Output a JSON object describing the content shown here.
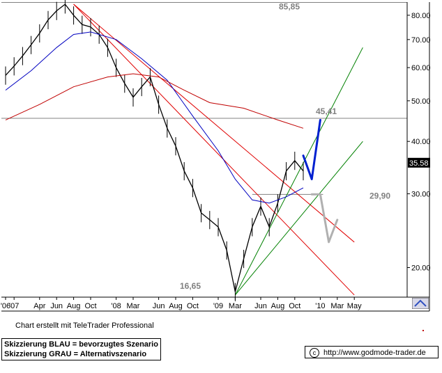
{
  "chart_data": {
    "type": "line",
    "subtype": "candlestick-price-chart",
    "y_scale": "log",
    "ylim": [
      17.0,
      86.0
    ],
    "y_ticks": [
      20,
      30,
      40,
      50,
      60,
      70,
      80
    ],
    "y_tick_labels": [
      "20.00",
      "30.00",
      "40.00",
      "50.00",
      "60.00",
      "70.00",
      "80.00"
    ],
    "x_axis": {
      "start": "2006-12",
      "end": "2010-06",
      "ticks": [
        {
          "label": "'06",
          "date": "2006-12"
        },
        {
          "label": "'07",
          "date": "2007-01"
        },
        {
          "label": "Apr",
          "date": "2007-04"
        },
        {
          "label": "Jun",
          "date": "2007-06"
        },
        {
          "label": "Aug",
          "date": "2007-08"
        },
        {
          "label": "Oct",
          "date": "2007-10"
        },
        {
          "label": "'08",
          "date": "2008-01"
        },
        {
          "label": "Mar",
          "date": "2008-03"
        },
        {
          "label": "Jun",
          "date": "2008-06"
        },
        {
          "label": "Aug",
          "date": "2008-08"
        },
        {
          "label": "Oct",
          "date": "2008-10"
        },
        {
          "label": "'09",
          "date": "2009-01"
        },
        {
          "label": "Mar",
          "date": "2009-03"
        },
        {
          "label": "Jun",
          "date": "2009-06"
        },
        {
          "label": "Aug",
          "date": "2009-08"
        },
        {
          "label": "Oct",
          "date": "2009-10"
        },
        {
          "label": "'10",
          "date": "2010-01"
        },
        {
          "label": "Mar",
          "date": "2010-03"
        },
        {
          "label": "May",
          "date": "2010-05"
        }
      ]
    },
    "last_price_label": "35.58",
    "last_price": 35.58,
    "series": [
      {
        "kind": "price",
        "color": "#000000",
        "points": [
          [
            "2006-12",
            57.5
          ],
          [
            "2007-01",
            60.5
          ],
          [
            "2007-02",
            64
          ],
          [
            "2007-03",
            68
          ],
          [
            "2007-04",
            72.5
          ],
          [
            "2007-05",
            78
          ],
          [
            "2007-06",
            82
          ],
          [
            "2007-07",
            85
          ],
          [
            "2007-08",
            80
          ],
          [
            "2007-09",
            76
          ],
          [
            "2007-10",
            75
          ],
          [
            "2007-11",
            72
          ],
          [
            "2007-12",
            67
          ],
          [
            "2008-01",
            60
          ],
          [
            "2008-02",
            55
          ],
          [
            "2008-03",
            51
          ],
          [
            "2008-04",
            54
          ],
          [
            "2008-05",
            57
          ],
          [
            "2008-06",
            49
          ],
          [
            "2008-07",
            43
          ],
          [
            "2008-08",
            39
          ],
          [
            "2008-09",
            34
          ],
          [
            "2008-10",
            31
          ],
          [
            "2008-11",
            27
          ],
          [
            "2008-12",
            26
          ],
          [
            "2009-01",
            25
          ],
          [
            "2009-02",
            22
          ],
          [
            "2009-03",
            17.5
          ],
          [
            "2009-04",
            21
          ],
          [
            "2009-05",
            25
          ],
          [
            "2009-06",
            28
          ],
          [
            "2009-07",
            25
          ],
          [
            "2009-08",
            28.5
          ],
          [
            "2009-09",
            34
          ],
          [
            "2009-10",
            36
          ],
          [
            "2009-11",
            34
          ]
        ]
      },
      {
        "kind": "moving-average",
        "color": "#0000c0",
        "points": [
          [
            "2006-12",
            53
          ],
          [
            "2007-03",
            59
          ],
          [
            "2007-06",
            67
          ],
          [
            "2007-08",
            72
          ],
          [
            "2007-10",
            73
          ],
          [
            "2008-01",
            70
          ],
          [
            "2008-04",
            63
          ],
          [
            "2008-07",
            56
          ],
          [
            "2008-10",
            46
          ],
          [
            "2009-01",
            38
          ],
          [
            "2009-03",
            32.5
          ],
          [
            "2009-05",
            29
          ],
          [
            "2009-07",
            28.5
          ],
          [
            "2009-09",
            29.5
          ],
          [
            "2009-11",
            31
          ]
        ]
      },
      {
        "kind": "moving-average",
        "color": "#c00000",
        "points": [
          [
            "2006-12",
            45
          ],
          [
            "2007-04",
            49
          ],
          [
            "2007-08",
            54
          ],
          [
            "2007-12",
            57
          ],
          [
            "2008-03",
            58
          ],
          [
            "2008-06",
            57
          ],
          [
            "2008-09",
            53
          ],
          [
            "2008-12",
            49.5
          ],
          [
            "2009-04",
            48
          ],
          [
            "2009-08",
            45
          ],
          [
            "2009-11",
            43
          ]
        ]
      }
    ],
    "trendlines": [
      {
        "color": "#e00000",
        "from": [
          "2007-08",
          85
        ],
        "to": [
          "2010-05",
          23
        ]
      },
      {
        "color": "#e00000",
        "from": [
          "2007-08",
          85
        ],
        "to": [
          "2010-05",
          17.2
        ]
      },
      {
        "color": "#008000",
        "from": [
          "2009-03",
          17.2
        ],
        "to": [
          "2010-06",
          67
        ]
      },
      {
        "color": "#008000",
        "from": [
          "2009-03",
          17.2
        ],
        "to": [
          "2010-06",
          40
        ]
      }
    ],
    "horizontal_levels": [
      {
        "value": 85.85,
        "label": "85,85"
      },
      {
        "value": 45.41,
        "label": "45,41"
      },
      {
        "value": 29.9,
        "label": "29,90"
      },
      {
        "value": 16.65,
        "label": "16,65"
      }
    ],
    "scenario_arrows": [
      {
        "color": "#0020d0",
        "points": [
          [
            "2009-11",
            37
          ],
          [
            "2009-12",
            32.5
          ],
          [
            "2010-01",
            45
          ]
        ]
      },
      {
        "color": "#b0b0b0",
        "points": [
          [
            "2009-12",
            29.9
          ],
          [
            "2010-01",
            29.9
          ],
          [
            "2010-02",
            23
          ],
          [
            "2010-03",
            26
          ]
        ]
      }
    ]
  },
  "footer": {
    "credit": "Chart erstellt mit TeleTrader Professional",
    "legend_line1": "Skizzierung BLAU = bevorzugtes Szenario",
    "legend_line2": "Skizzierung GRAU = Alternativszenario",
    "url": "http://www.godmode-trader.de"
  }
}
